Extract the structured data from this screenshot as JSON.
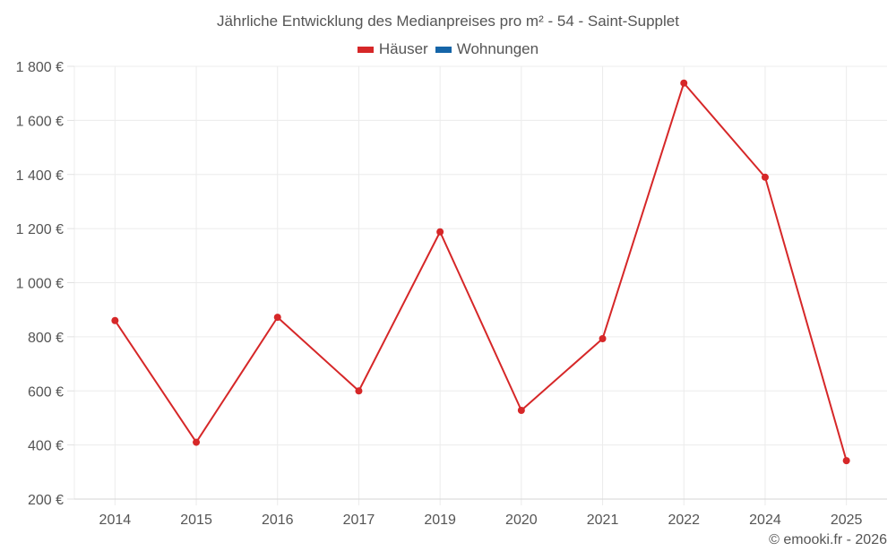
{
  "chart_data": {
    "type": "line",
    "title": "Jährliche Entwicklung des Medianpreises pro m² - 54 - Saint-Supplet",
    "xlabel": "",
    "ylabel": "",
    "categories": [
      "2014",
      "2015",
      "2016",
      "2017",
      "2019",
      "2020",
      "2021",
      "2022",
      "2024",
      "2025"
    ],
    "series": [
      {
        "name": "Häuser",
        "color": "#d62728",
        "values": [
          860,
          410,
          872,
          600,
          1188,
          528,
          793,
          1738,
          1390,
          342
        ]
      },
      {
        "name": "Wohnungen",
        "color": "#1565a8",
        "values": []
      }
    ],
    "ylim": [
      200,
      1800
    ],
    "yticks": [
      200,
      400,
      600,
      800,
      1000,
      1200,
      1400,
      1600,
      1800
    ],
    "ytick_labels": [
      "200 €",
      "400 €",
      "600 €",
      "800 €",
      "1 000 €",
      "1 200 €",
      "1 400 €",
      "1 600 €",
      "1 800 €"
    ],
    "grid": true,
    "legend_position": "top"
  },
  "legend": [
    {
      "label": "Häuser",
      "color": "#d62728"
    },
    {
      "label": "Wohnungen",
      "color": "#1565a8"
    }
  ],
  "credit": "© emooki.fr - 2026"
}
